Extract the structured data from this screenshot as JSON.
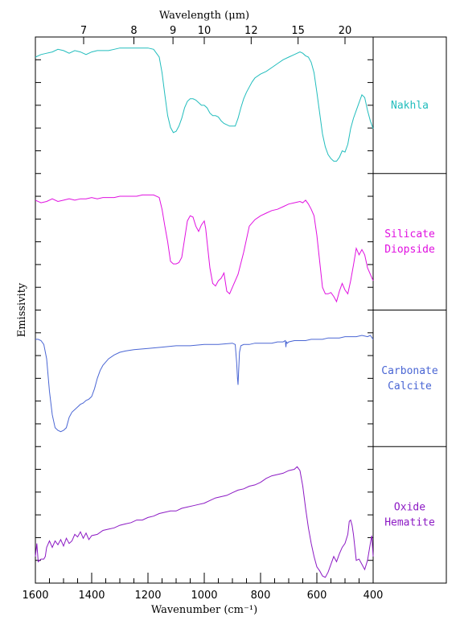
{
  "chart_data": {
    "type": "line",
    "x_axis": {
      "label": "Wavenumber (cm⁻¹)",
      "range": [
        1600,
        400
      ],
      "ticks": [
        1600,
        1400,
        1200,
        1000,
        800,
        600,
        400
      ],
      "minor_step": 50
    },
    "top_axis": {
      "label": "Wavelength (μm)",
      "ticks_um": [
        7,
        8,
        9,
        10,
        12,
        15,
        20
      ]
    },
    "y_axis": {
      "label": "Emissivity"
    },
    "panels": [
      {
        "label_lines": [
          "Nakhla"
        ],
        "color": "#22bdbd",
        "x": [
          1600,
          1580,
          1560,
          1540,
          1520,
          1500,
          1480,
          1460,
          1440,
          1420,
          1400,
          1380,
          1360,
          1340,
          1320,
          1300,
          1280,
          1260,
          1240,
          1220,
          1200,
          1180,
          1160,
          1150,
          1140,
          1130,
          1120,
          1110,
          1100,
          1090,
          1080,
          1070,
          1060,
          1050,
          1040,
          1030,
          1020,
          1010,
          1000,
          990,
          980,
          970,
          960,
          950,
          940,
          930,
          920,
          910,
          900,
          890,
          880,
          870,
          860,
          850,
          840,
          830,
          820,
          800,
          780,
          760,
          740,
          720,
          700,
          680,
          660,
          650,
          640,
          630,
          620,
          610,
          600,
          590,
          580,
          570,
          560,
          550,
          540,
          530,
          520,
          510,
          500,
          490,
          480,
          470,
          460,
          450,
          440,
          430,
          420,
          410,
          400
        ],
        "y": [
          0.87,
          0.89,
          0.9,
          0.91,
          0.93,
          0.92,
          0.9,
          0.92,
          0.91,
          0.89,
          0.91,
          0.92,
          0.92,
          0.92,
          0.93,
          0.94,
          0.94,
          0.94,
          0.94,
          0.94,
          0.94,
          0.93,
          0.87,
          0.75,
          0.58,
          0.42,
          0.33,
          0.29,
          0.3,
          0.34,
          0.4,
          0.48,
          0.53,
          0.55,
          0.55,
          0.54,
          0.52,
          0.5,
          0.5,
          0.48,
          0.44,
          0.42,
          0.42,
          0.41,
          0.38,
          0.36,
          0.35,
          0.34,
          0.34,
          0.34,
          0.4,
          0.48,
          0.55,
          0.6,
          0.64,
          0.68,
          0.71,
          0.74,
          0.76,
          0.79,
          0.82,
          0.85,
          0.87,
          0.89,
          0.91,
          0.9,
          0.88,
          0.87,
          0.83,
          0.75,
          0.6,
          0.44,
          0.28,
          0.18,
          0.12,
          0.09,
          0.07,
          0.07,
          0.1,
          0.15,
          0.14,
          0.2,
          0.32,
          0.4,
          0.46,
          0.52,
          0.58,
          0.56,
          0.46,
          0.38,
          0.32
        ]
      },
      {
        "label_lines": [
          "Silicate",
          "Diopside"
        ],
        "color": "#e010e0",
        "x": [
          1600,
          1580,
          1560,
          1540,
          1520,
          1500,
          1480,
          1460,
          1440,
          1420,
          1400,
          1380,
          1360,
          1340,
          1320,
          1300,
          1280,
          1260,
          1240,
          1220,
          1200,
          1180,
          1160,
          1150,
          1140,
          1130,
          1120,
          1110,
          1100,
          1090,
          1080,
          1070,
          1060,
          1050,
          1040,
          1030,
          1020,
          1010,
          1000,
          995,
          990,
          980,
          970,
          960,
          950,
          940,
          930,
          920,
          910,
          900,
          880,
          860,
          840,
          820,
          800,
          780,
          760,
          740,
          720,
          700,
          680,
          660,
          650,
          640,
          630,
          620,
          610,
          600,
          590,
          580,
          570,
          560,
          550,
          540,
          530,
          520,
          510,
          500,
          490,
          480,
          470,
          460,
          450,
          440,
          430,
          420,
          410,
          400
        ],
        "y": [
          0.82,
          0.8,
          0.81,
          0.83,
          0.81,
          0.82,
          0.83,
          0.82,
          0.83,
          0.83,
          0.84,
          0.83,
          0.84,
          0.84,
          0.84,
          0.85,
          0.85,
          0.85,
          0.85,
          0.86,
          0.86,
          0.86,
          0.84,
          0.75,
          0.62,
          0.5,
          0.35,
          0.33,
          0.33,
          0.34,
          0.38,
          0.52,
          0.66,
          0.7,
          0.69,
          0.62,
          0.58,
          0.63,
          0.66,
          0.6,
          0.5,
          0.3,
          0.18,
          0.16,
          0.2,
          0.22,
          0.26,
          0.12,
          0.1,
          0.15,
          0.25,
          0.42,
          0.62,
          0.67,
          0.7,
          0.72,
          0.74,
          0.75,
          0.77,
          0.79,
          0.8,
          0.81,
          0.8,
          0.82,
          0.79,
          0.75,
          0.7,
          0.55,
          0.35,
          0.15,
          0.1,
          0.1,
          0.11,
          0.08,
          0.04,
          0.12,
          0.18,
          0.13,
          0.1,
          0.2,
          0.32,
          0.45,
          0.4,
          0.44,
          0.4,
          0.3,
          0.25,
          0.2
        ]
      },
      {
        "label_lines": [
          "Carbonate",
          "Calcite"
        ],
        "color": "#4a66d4",
        "x": [
          1600,
          1590,
          1580,
          1570,
          1560,
          1550,
          1540,
          1530,
          1520,
          1510,
          1500,
          1490,
          1480,
          1470,
          1460,
          1450,
          1440,
          1430,
          1420,
          1410,
          1400,
          1390,
          1380,
          1370,
          1360,
          1340,
          1320,
          1300,
          1280,
          1250,
          1200,
          1150,
          1100,
          1050,
          1000,
          950,
          900,
          890,
          885,
          882,
          880,
          878,
          875,
          870,
          860,
          840,
          820,
          800,
          780,
          760,
          740,
          720,
          712,
          710,
          708,
          705,
          700,
          680,
          660,
          640,
          620,
          600,
          580,
          560,
          540,
          520,
          500,
          480,
          460,
          440,
          420,
          410,
          400
        ],
        "y": [
          0.8,
          0.8,
          0.79,
          0.76,
          0.65,
          0.4,
          0.22,
          0.12,
          0.1,
          0.09,
          0.1,
          0.12,
          0.2,
          0.24,
          0.26,
          0.28,
          0.3,
          0.31,
          0.33,
          0.34,
          0.36,
          0.42,
          0.5,
          0.56,
          0.6,
          0.65,
          0.68,
          0.7,
          0.71,
          0.72,
          0.73,
          0.74,
          0.75,
          0.75,
          0.76,
          0.76,
          0.77,
          0.76,
          0.62,
          0.5,
          0.45,
          0.55,
          0.7,
          0.75,
          0.76,
          0.76,
          0.77,
          0.77,
          0.77,
          0.77,
          0.78,
          0.78,
          0.79,
          0.74,
          0.78,
          0.77,
          0.78,
          0.79,
          0.79,
          0.79,
          0.8,
          0.8,
          0.8,
          0.81,
          0.81,
          0.81,
          0.82,
          0.82,
          0.82,
          0.83,
          0.82,
          0.83,
          0.8
        ]
      },
      {
        "label_lines": [
          "Oxide",
          "Hematite"
        ],
        "color": "#8c1ac4",
        "x": [
          1600,
          1595,
          1590,
          1580,
          1570,
          1565,
          1560,
          1550,
          1540,
          1530,
          1520,
          1510,
          1500,
          1490,
          1480,
          1470,
          1460,
          1450,
          1440,
          1430,
          1420,
          1410,
          1400,
          1380,
          1360,
          1340,
          1320,
          1300,
          1280,
          1260,
          1240,
          1220,
          1200,
          1180,
          1160,
          1140,
          1120,
          1100,
          1080,
          1060,
          1040,
          1020,
          1000,
          980,
          960,
          940,
          920,
          900,
          880,
          860,
          840,
          820,
          800,
          780,
          760,
          740,
          720,
          700,
          680,
          670,
          660,
          650,
          640,
          630,
          620,
          610,
          600,
          590,
          580,
          570,
          560,
          550,
          540,
          530,
          520,
          510,
          500,
          490,
          485,
          480,
          475,
          470,
          460,
          450,
          440,
          430,
          420,
          410,
          405,
          400
        ],
        "y": [
          0.18,
          0.28,
          0.14,
          0.16,
          0.16,
          0.18,
          0.25,
          0.3,
          0.25,
          0.3,
          0.27,
          0.31,
          0.26,
          0.32,
          0.28,
          0.3,
          0.35,
          0.33,
          0.37,
          0.32,
          0.36,
          0.31,
          0.34,
          0.35,
          0.38,
          0.39,
          0.4,
          0.42,
          0.43,
          0.44,
          0.46,
          0.46,
          0.48,
          0.49,
          0.51,
          0.52,
          0.53,
          0.53,
          0.55,
          0.56,
          0.57,
          0.58,
          0.59,
          0.61,
          0.63,
          0.64,
          0.65,
          0.67,
          0.69,
          0.7,
          0.72,
          0.73,
          0.75,
          0.78,
          0.8,
          0.81,
          0.82,
          0.84,
          0.85,
          0.87,
          0.84,
          0.72,
          0.55,
          0.4,
          0.28,
          0.18,
          0.1,
          0.07,
          0.03,
          0.02,
          0.06,
          0.12,
          0.18,
          0.14,
          0.2,
          0.25,
          0.28,
          0.35,
          0.45,
          0.46,
          0.42,
          0.35,
          0.15,
          0.16,
          0.12,
          0.08,
          0.15,
          0.28,
          0.34,
          0.18
        ]
      }
    ]
  }
}
